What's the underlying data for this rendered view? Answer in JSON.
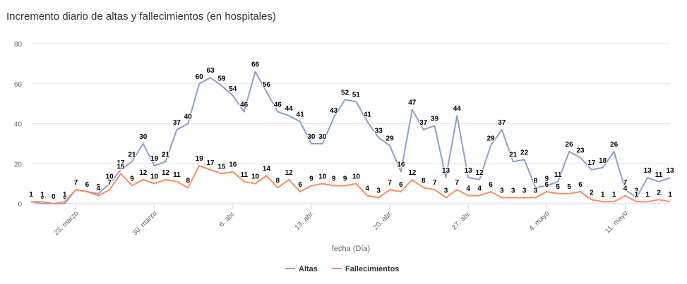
{
  "chart_data": {
    "type": "line",
    "title": "Incremento diario de altas y fallecimientos (en hospitales)",
    "xlabel": "fecha (Día)",
    "ylabel": "",
    "ylim": [
      0,
      80
    ],
    "yticks": [
      "0",
      "20",
      "40",
      "60",
      "80"
    ],
    "x_tick_labels": [
      {
        "label": "23. marzo",
        "index": 4
      },
      {
        "label": "30. marzo",
        "index": 11
      },
      {
        "label": "6. abr.",
        "index": 18
      },
      {
        "label": "13. abr.",
        "index": 25
      },
      {
        "label": "20. abr.",
        "index": 32
      },
      {
        "label": "27. abr.",
        "index": 39
      },
      {
        "label": "4. mayo",
        "index": 46
      },
      {
        "label": "11. mayo",
        "index": 53
      }
    ],
    "grid": true,
    "legend_position": "bottom-center",
    "series": [
      {
        "name": "Altas",
        "color": "#8da0cb",
        "values": [
          1,
          0,
          0,
          0,
          7,
          6,
          5,
          10,
          17,
          21,
          30,
          19,
          21,
          37,
          40,
          60,
          63,
          59,
          54,
          46,
          66,
          56,
          46,
          44,
          41,
          30,
          30,
          43,
          52,
          51,
          41,
          33,
          29,
          16,
          47,
          37,
          39,
          13,
          44,
          13,
          12,
          29,
          37,
          21,
          22,
          8,
          9,
          11,
          26,
          23,
          17,
          18,
          26,
          7,
          3,
          13,
          11,
          13
        ]
      },
      {
        "name": "Fallecimientos",
        "color": "#fc8d62",
        "values": [
          1,
          1,
          0,
          1,
          7,
          6,
          4,
          7,
          15,
          9,
          12,
          10,
          12,
          11,
          8,
          19,
          17,
          15,
          16,
          11,
          10,
          14,
          8,
          12,
          6,
          9,
          10,
          9,
          9,
          10,
          4,
          3,
          7,
          6,
          12,
          8,
          7,
          3,
          7,
          4,
          4,
          6,
          3,
          3,
          3,
          3,
          6,
          5,
          5,
          6,
          2,
          1,
          1,
          4,
          1,
          1,
          2,
          1
        ]
      }
    ]
  }
}
